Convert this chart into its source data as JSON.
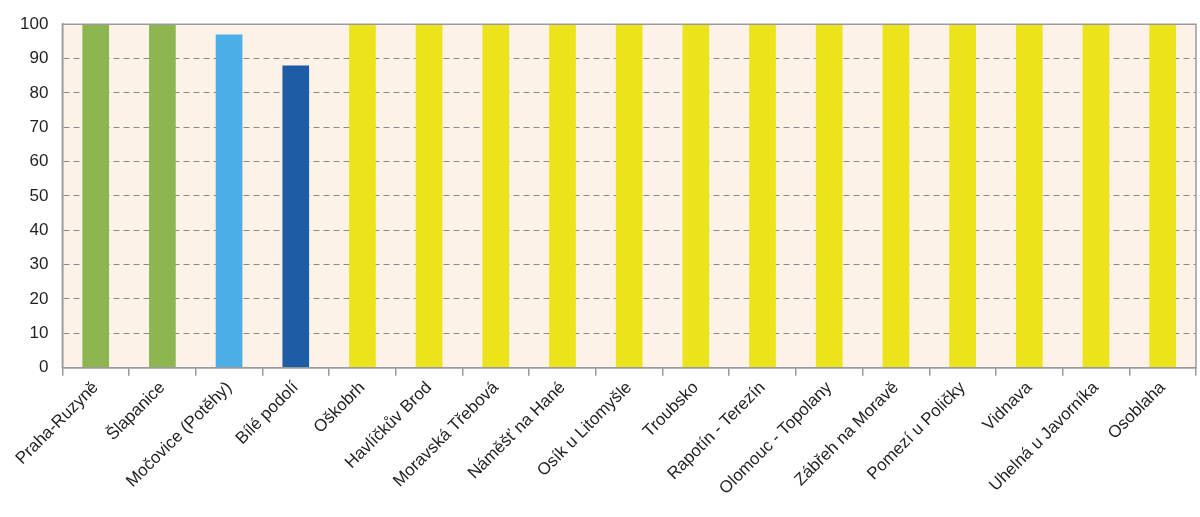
{
  "chart_data": {
    "type": "bar",
    "categories": [
      "Praha-Ruzyně",
      "Šlapanice",
      "Močovice (Potěhy)",
      "Bílé podolí",
      "Oškobrh",
      "Havlíčkův Brod",
      "Moravská Třebová",
      "Náměšť na Hané",
      "Osík u Litomyšle",
      "Troubsko",
      "Rapotín - Terezín",
      "Olomouc - Topolany",
      "Zábřeh na Moravě",
      "Pomezí u Poličky",
      "Vidnava",
      "Uhelná u Javorníka",
      "Osoblaha"
    ],
    "values": [
      100,
      100,
      97,
      88,
      100,
      100,
      100,
      100,
      100,
      100,
      100,
      100,
      100,
      100,
      100,
      100,
      100
    ],
    "colors": [
      "#8db650",
      "#8db650",
      "#4baee6",
      "#1f5ca6",
      "#ede31a",
      "#ede31a",
      "#ede31a",
      "#ede31a",
      "#ede31a",
      "#ede31a",
      "#ede31a",
      "#ede31a",
      "#ede31a",
      "#ede31a",
      "#ede31a",
      "#ede31a",
      "#ede31a"
    ],
    "ylim": [
      0,
      100
    ],
    "yticks": [
      0,
      10,
      20,
      30,
      40,
      50,
      60,
      70,
      80,
      90,
      100
    ],
    "grid": "y"
  }
}
